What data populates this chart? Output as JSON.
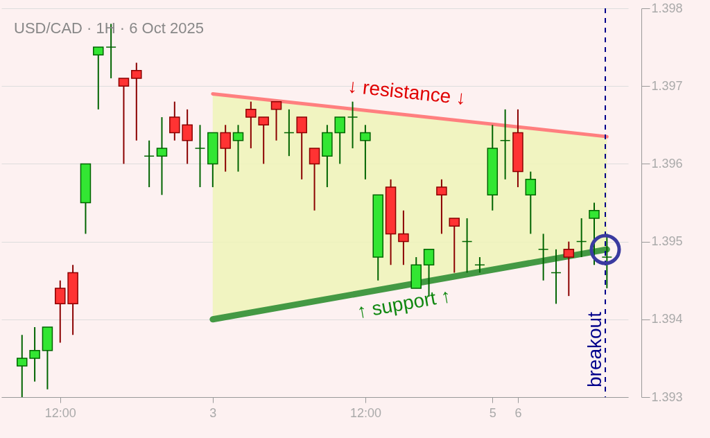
{
  "chart_data": {
    "type": "candlestick",
    "title": "USD/CAD · 1H · 6 Oct 2025",
    "categories": [
      null,
      null,
      null,
      "12:00",
      null,
      null,
      null,
      null,
      null,
      null,
      null,
      null,
      null,
      null,
      null,
      "3",
      null,
      null,
      null,
      null,
      null,
      null,
      null,
      null,
      null,
      null,
      null,
      "12:00",
      null,
      null,
      null,
      null,
      null,
      null,
      null,
      null,
      null,
      "5",
      null,
      "6",
      null,
      null,
      null,
      null,
      null,
      null,
      null
    ],
    "ohlc": [
      [
        1.3934,
        1.3938,
        1.393,
        1.3935
      ],
      [
        1.3935,
        1.3939,
        1.3932,
        1.3936
      ],
      [
        1.3936,
        1.3939,
        1.3931,
        1.3939
      ],
      [
        1.3944,
        1.3945,
        1.3937,
        1.3942
      ],
      [
        1.3946,
        1.3947,
        1.3938,
        1.3942
      ],
      [
        1.3955,
        1.396,
        1.3951,
        1.396
      ],
      [
        1.3974,
        1.3975,
        1.3967,
        1.3975
      ],
      [
        1.3975,
        1.3978,
        1.3971,
        1.3975
      ],
      [
        1.3971,
        1.3971,
        1.396,
        1.397
      ],
      [
        1.3972,
        1.3973,
        1.3963,
        1.3971
      ],
      [
        1.3961,
        1.3963,
        1.3957,
        1.3961
      ],
      [
        1.3961,
        1.3966,
        1.3956,
        1.3962
      ],
      [
        1.3966,
        1.3968,
        1.3963,
        1.3964
      ],
      [
        1.3965,
        1.3967,
        1.396,
        1.3963
      ],
      [
        1.3962,
        1.3965,
        1.3957,
        1.3962
      ],
      [
        1.396,
        1.3964,
        1.3957,
        1.3964
      ],
      [
        1.3964,
        1.3965,
        1.3959,
        1.3962
      ],
      [
        1.3963,
        1.3965,
        1.3959,
        1.3964
      ],
      [
        1.3967,
        1.3968,
        1.3962,
        1.3966
      ],
      [
        1.3966,
        1.3966,
        1.396,
        1.3965
      ],
      [
        1.3968,
        1.3968,
        1.3963,
        1.3967
      ],
      [
        1.3964,
        1.3967,
        1.3961,
        1.3964
      ],
      [
        1.3966,
        1.3966,
        1.3958,
        1.3964
      ],
      [
        1.3962,
        1.3962,
        1.3954,
        1.396
      ],
      [
        1.3961,
        1.3965,
        1.3957,
        1.3964
      ],
      [
        1.3964,
        1.3966,
        1.396,
        1.3966
      ],
      [
        1.3966,
        1.3968,
        1.3962,
        1.3966
      ],
      [
        1.3963,
        1.3965,
        1.3958,
        1.3964
      ],
      [
        1.3948,
        1.3956,
        1.3945,
        1.3956
      ],
      [
        1.3957,
        1.3958,
        1.3947,
        1.3951
      ],
      [
        1.3951,
        1.3954,
        1.3947,
        1.395
      ],
      [
        1.3944,
        1.3948,
        1.3944,
        1.3947
      ],
      [
        1.3947,
        1.3949,
        1.3943,
        1.3949
      ],
      [
        1.3957,
        1.3958,
        1.3951,
        1.3956
      ],
      [
        1.3953,
        1.3953,
        1.3946,
        1.3952
      ],
      [
        1.395,
        1.3953,
        1.3946,
        1.395
      ],
      [
        1.3947,
        1.3948,
        1.3946,
        1.3947
      ],
      [
        1.3956,
        1.3965,
        1.3954,
        1.3962
      ],
      [
        1.3963,
        1.3967,
        1.3958,
        1.3963
      ],
      [
        1.3964,
        1.3967,
        1.3957,
        1.3959
      ],
      [
        1.3956,
        1.3959,
        1.3951,
        1.3958
      ],
      [
        1.3949,
        1.3951,
        1.3945,
        1.3949
      ],
      [
        1.3946,
        1.3949,
        1.3942,
        1.3946
      ],
      [
        1.3949,
        1.395,
        1.3943,
        1.3948
      ],
      [
        1.395,
        1.3953,
        1.3948,
        1.395
      ],
      [
        1.3953,
        1.3955,
        1.3947,
        1.3954
      ],
      [
        1.3948,
        1.3951,
        1.3944,
        1.3948
      ]
    ],
    "series": [
      {
        "type": "line",
        "color": "#ff7f7f",
        "values": [
          null,
          null,
          null,
          null,
          null,
          null,
          null,
          null,
          null,
          null,
          null,
          null,
          null,
          null,
          null,
          1.3969,
          null,
          null,
          null,
          null,
          null,
          null,
          null,
          null,
          null,
          null,
          null,
          null,
          null,
          null,
          null,
          null,
          null,
          null,
          null,
          null,
          null,
          null,
          null,
          null,
          null,
          null,
          null,
          null,
          null,
          null,
          1.39635
        ]
      },
      {
        "type": "line",
        "color": "#449944",
        "values": [
          null,
          null,
          null,
          null,
          null,
          null,
          null,
          null,
          null,
          null,
          null,
          null,
          null,
          null,
          null,
          1.394,
          null,
          null,
          null,
          null,
          null,
          null,
          null,
          null,
          null,
          null,
          null,
          null,
          null,
          null,
          null,
          null,
          null,
          null,
          null,
          null,
          null,
          null,
          null,
          null,
          null,
          null,
          null,
          null,
          null,
          null,
          1.3949
        ]
      }
    ],
    "annotations": [
      "↓ resistance ↓",
      "↑ support ↑",
      "breakout"
    ],
    "ylim": [
      1.393,
      1.398
    ],
    "yticks": [
      1.393,
      1.394,
      1.395,
      1.396,
      1.397,
      1.398
    ],
    "grid": "y"
  }
}
